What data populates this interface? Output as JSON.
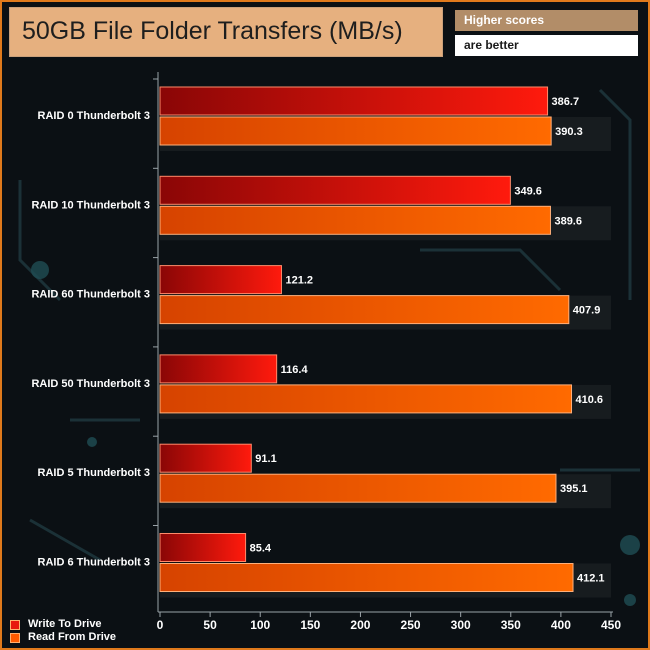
{
  "header": {
    "title": "50GB File Folder Transfers (MB/s)",
    "note_line1": "Higher scores",
    "note_line2": "are better"
  },
  "colors": {
    "write": "#e8170e",
    "write_dark": "#8a0606",
    "read": "#ff5a00",
    "read_dark": "#c43a00",
    "axis": "#9aa3a8",
    "text": "#ffffff"
  },
  "chart_data": {
    "type": "bar",
    "orientation": "horizontal",
    "title": "50GB File Folder Transfers (MB/s)",
    "categories": [
      "RAID 0 Thunderbolt 3",
      "RAID 10 Thunderbolt 3",
      "RAID 60 Thunderbolt 3",
      "RAID 50 Thunderbolt 3",
      "RAID 5 Thunderbolt 3",
      "RAID 6 Thunderbolt 3"
    ],
    "series": [
      {
        "name": "Write To Drive",
        "values": [
          386.7,
          349.6,
          121.2,
          116.4,
          91.1,
          85.4
        ]
      },
      {
        "name": "Read From Drive",
        "values": [
          390.3,
          389.6,
          407.9,
          410.6,
          395.1,
          412.1
        ]
      }
    ],
    "xlim": [
      0,
      450
    ],
    "xticks": [
      0,
      50,
      100,
      150,
      200,
      250,
      300,
      350,
      400,
      450
    ],
    "grid": false,
    "legend_position": "bottom-left"
  }
}
